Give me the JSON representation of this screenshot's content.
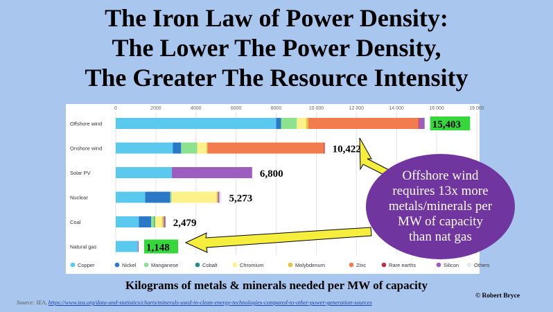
{
  "title": {
    "line1": "The Iron Law of Power Density:",
    "line2": "The Lower The Power Density,",
    "line3": "The Greater The Resource Intensity"
  },
  "chart_data": {
    "type": "bar",
    "orientation": "horizontal",
    "stacked": true,
    "x_ticks": [
      "0",
      "2000",
      "4000",
      "6000",
      "8000",
      "10 000",
      "12 000",
      "14 000",
      "16 000",
      "18 000"
    ],
    "xlim": [
      0,
      18000
    ],
    "grid": true,
    "legend_position": "bottom",
    "categories": [
      "Offshore wind",
      "Onshore wind",
      "Solar PV",
      "Nuclear",
      "Coal",
      "Natural gas"
    ],
    "totals": [
      "15,403",
      "10,422",
      "6,800",
      "5,273",
      "2,479",
      "1,148"
    ],
    "highlight_total_color": "#35d73b",
    "series": [
      {
        "name": "Copper",
        "color": "#5bc8ee",
        "values": [
          8000,
          2850,
          2800,
          1470,
          1150,
          1100
        ]
      },
      {
        "name": "Nickel",
        "color": "#2a78c6",
        "values": [
          240,
          410,
          0,
          1250,
          620,
          0
        ]
      },
      {
        "name": "Manganese",
        "color": "#8de28f",
        "values": [
          790,
          800,
          0,
          70,
          150,
          0
        ]
      },
      {
        "name": "Cobalt",
        "color": "#1f8f83",
        "values": [
          0,
          0,
          0,
          0,
          40,
          0
        ]
      },
      {
        "name": "Chromium",
        "color": "#fdf18a",
        "values": [
          470,
          470,
          0,
          2240,
          360,
          0
        ]
      },
      {
        "name": "Molybdenum",
        "color": "#e9c044",
        "values": [
          100,
          50,
          0,
          70,
          80,
          0
        ]
      },
      {
        "name": "Zinc",
        "color": "#f27b4f",
        "values": [
          5500,
          5800,
          0,
          0,
          0,
          0
        ]
      },
      {
        "name": "Rare earths",
        "color": "#c02d46",
        "values": [
          40,
          40,
          0,
          0,
          0,
          0
        ]
      },
      {
        "name": "Silicon",
        "color": "#9d5dbf",
        "values": [
          260,
          0,
          4000,
          70,
          80,
          40
        ]
      },
      {
        "name": "Others",
        "color": "#e9e9e9",
        "values": [
          0,
          0,
          0,
          100,
          0,
          0
        ]
      }
    ],
    "caption": "Kilograms of metals & minerals needed per MW of capacity"
  },
  "callout": {
    "text": "Offshore wind\nrequires 13x more\nmetals/minerals per\nMW of capacity\nthan nat gas",
    "color": "#7135a0",
    "arrow_color": "#f5ee3c"
  },
  "source": {
    "prefix": "Source: IEA,",
    "url": "https://www.iea.org/data-and-statistics/charts/minerals-used-in-clean-energy-technologies-compared-to-other-power-generation-sources"
  },
  "credit": "© Robert Bryce"
}
